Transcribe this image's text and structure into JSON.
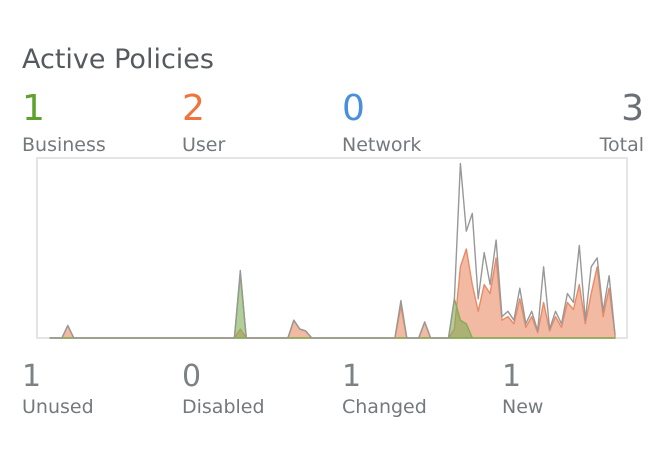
{
  "header": {
    "title": "Active Policies"
  },
  "stats": [
    {
      "value": "1",
      "label": "Business",
      "color": "#5da22a"
    },
    {
      "value": "2",
      "label": "User",
      "color": "#f0743e"
    },
    {
      "value": "0",
      "label": "Network",
      "color": "#4a8fdc"
    },
    {
      "value": "3",
      "label": "Total",
      "color": "#6b7076"
    }
  ],
  "chart_data": {
    "type": "area",
    "ylim": [
      0,
      100
    ],
    "series": [
      {
        "color": "#e98a66",
        "values": [
          0,
          0,
          0,
          7,
          0,
          0,
          0,
          0,
          0,
          0,
          0,
          0,
          0,
          0,
          0,
          0,
          0,
          0,
          0,
          0,
          0,
          0,
          0,
          0,
          0,
          0,
          0,
          0,
          0,
          0,
          0,
          0,
          5,
          0,
          0,
          0,
          0,
          0,
          0,
          0,
          0,
          10,
          5,
          4,
          0,
          0,
          0,
          0,
          0,
          0,
          0,
          0,
          0,
          0,
          0,
          0,
          0,
          0,
          0,
          18,
          0,
          0,
          0,
          9,
          0,
          0,
          0,
          0,
          5,
          40,
          50,
          30,
          15,
          30,
          25,
          45,
          10,
          12,
          8,
          22,
          6,
          12,
          3,
          20,
          4,
          12,
          6,
          20,
          16,
          30,
          8,
          25,
          40,
          12,
          28,
          2
        ]
      },
      {
        "color": "#7fae55",
        "values": [
          0,
          0,
          0,
          0,
          0,
          0,
          0,
          0,
          0,
          0,
          0,
          0,
          0,
          0,
          0,
          0,
          0,
          0,
          0,
          0,
          0,
          0,
          0,
          0,
          0,
          0,
          0,
          0,
          0,
          0,
          0,
          0,
          36,
          0,
          0,
          0,
          0,
          0,
          0,
          0,
          0,
          0,
          0,
          0,
          0,
          0,
          0,
          0,
          0,
          0,
          0,
          0,
          0,
          0,
          0,
          0,
          0,
          0,
          0,
          0,
          0,
          0,
          0,
          0,
          0,
          0,
          0,
          0,
          22,
          10,
          8,
          0,
          0,
          0,
          0,
          0,
          0,
          0,
          0,
          0,
          0,
          0,
          0,
          0,
          0,
          0,
          0,
          0,
          0,
          0,
          0,
          0,
          0,
          0,
          0,
          0
        ]
      },
      {
        "color": "#989898",
        "values": [
          0,
          0,
          0,
          7,
          0,
          0,
          0,
          0,
          0,
          0,
          0,
          0,
          0,
          0,
          0,
          0,
          0,
          0,
          0,
          0,
          0,
          0,
          0,
          0,
          0,
          0,
          0,
          0,
          0,
          0,
          0,
          0,
          38,
          0,
          0,
          0,
          0,
          0,
          0,
          0,
          0,
          10,
          5,
          4,
          0,
          0,
          0,
          0,
          0,
          0,
          0,
          0,
          0,
          0,
          0,
          0,
          0,
          0,
          0,
          21,
          0,
          0,
          0,
          9,
          0,
          0,
          0,
          0,
          22,
          98,
          60,
          70,
          22,
          48,
          30,
          55,
          12,
          15,
          10,
          28,
          8,
          15,
          4,
          40,
          5,
          15,
          8,
          25,
          20,
          52,
          10,
          40,
          45,
          15,
          35,
          2
        ]
      }
    ]
  },
  "summary": [
    {
      "value": "1",
      "label": "Unused"
    },
    {
      "value": "0",
      "label": "Disabled"
    },
    {
      "value": "1",
      "label": "Changed"
    },
    {
      "value": "1",
      "label": "New"
    }
  ]
}
